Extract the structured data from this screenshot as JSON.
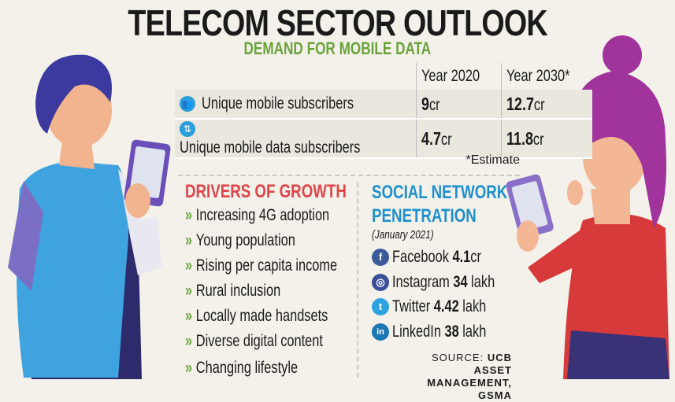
{
  "title": "TELECOM SECTOR OUTLOOK",
  "subtitle": "DEMAND FOR MOBILE DATA",
  "table": {
    "columns": [
      "Year 2020",
      "Year 2030*"
    ],
    "rows": [
      {
        "icon": "users-icon",
        "label": "Unique mobile subscribers",
        "v2020": "9",
        "v2020_unit": "cr",
        "v2030": "12.7",
        "v2030_unit": "cr"
      },
      {
        "icon": "up-down-arrows-icon",
        "label": "Unique mobile data subscribers",
        "v2020": "4.7",
        "v2020_unit": "cr",
        "v2030": "11.8",
        "v2030_unit": "cr"
      }
    ],
    "footnote": "*Estimate"
  },
  "drivers": {
    "title": "DRIVERS OF GROWTH",
    "items": [
      "Increasing 4G adoption",
      "Young population",
      "Rising per capita income",
      "Rural inclusion",
      "Locally made handsets",
      "Diverse digital content",
      "Changing lifestyle"
    ]
  },
  "social": {
    "title_line1": "SOCIAL NETWORK",
    "title_line2": "PENETRATION",
    "date": "(January 2021)",
    "items": [
      {
        "name": "Facebook",
        "value": "4.1",
        "unit": "cr",
        "icon": "facebook-icon",
        "color": "#3b5a9a",
        "glyph": "f"
      },
      {
        "name": "Instagram",
        "value": "34",
        "unit": "lakh",
        "icon": "instagram-icon",
        "color": "#3a4f9a",
        "glyph": "◎"
      },
      {
        "name": "Twitter",
        "value": "4.42",
        "unit": "lakh",
        "icon": "twitter-icon",
        "color": "#2ca3e0",
        "glyph": "t"
      },
      {
        "name": "LinkedIn",
        "value": "38",
        "unit": "lakh",
        "icon": "linkedin-icon",
        "color": "#1c77b5",
        "glyph": "in"
      }
    ]
  },
  "source": {
    "label": "SOURCE:",
    "text_line1": "UCB ASSET",
    "text_line2": "MANAGEMENT, GSMA"
  },
  "colors": {
    "background": "#f3f1ea",
    "green": "#6aa33a",
    "red": "#e0454a",
    "blue": "#1f8fce"
  }
}
